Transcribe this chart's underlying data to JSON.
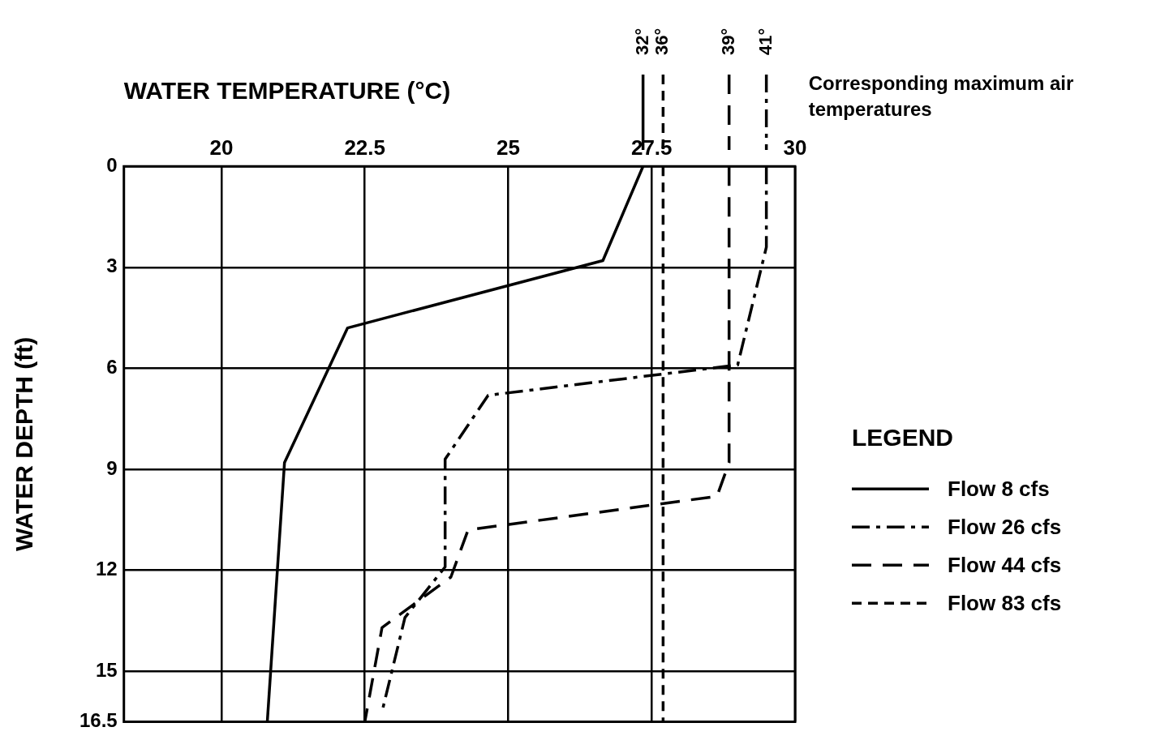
{
  "chart_data": {
    "type": "line",
    "xlabel": "WATER TEMPERATURE (°C)",
    "ylabel": "WATER DEPTH (ft)",
    "legend_title": "LEGEND",
    "xlim": [
      18.3,
      30
    ],
    "xticks": [
      20,
      22.5,
      25,
      27.5,
      30
    ],
    "ylim": [
      16.5,
      0
    ],
    "yticks": [
      0,
      3,
      6,
      9,
      12,
      15,
      16.5
    ],
    "grid": true,
    "legend": "right",
    "marker": "none",
    "series": [
      {
        "name": "Flow 8 cfs",
        "color": "#000000",
        "line_style": "solid",
        "x": [
          27.35,
          26.65,
          22.2,
          21.1,
          20.8
        ],
        "values": [
          0,
          2.8,
          4.8,
          8.8,
          16.5
        ]
      },
      {
        "name": "Flow 26 cfs",
        "color": "#000000",
        "line_style": "dashdot",
        "x": [
          29.5,
          29.5,
          29.0,
          24.65,
          23.9,
          23.9,
          23.2,
          22.8
        ],
        "values": [
          0,
          2.4,
          5.9,
          6.8,
          8.7,
          11.9,
          13.4,
          16.2
        ]
      },
      {
        "name": "Flow 44 cfs",
        "color": "#000000",
        "line_style": "dashed",
        "x": [
          28.85,
          28.85,
          28.64,
          24.3,
          24.0,
          22.8,
          22.5
        ],
        "values": [
          0,
          8.8,
          9.8,
          10.8,
          12.2,
          13.7,
          16.5
        ]
      },
      {
        "name": "Flow 83 cfs",
        "color": "#000000",
        "line_style": "dotted",
        "x": [
          27.7,
          27.7
        ],
        "values": [
          0,
          16.5
        ]
      }
    ],
    "annotations": [
      "32°",
      "41°",
      "39°",
      "36°",
      "Corresponding maximum air temperatures"
    ]
  }
}
